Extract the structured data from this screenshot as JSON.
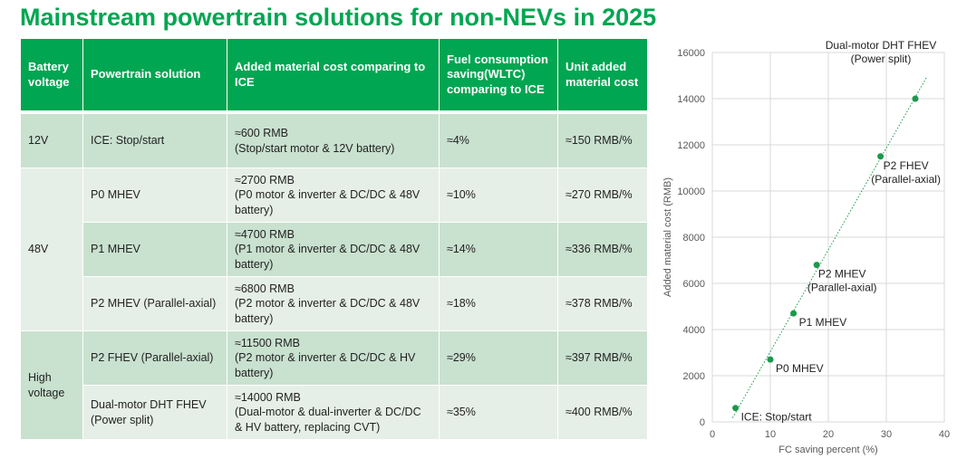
{
  "title": "Mainstream powertrain solutions for non-NEVs in 2025",
  "table": {
    "headers": [
      "Battery voltage",
      "Powertrain solution",
      "Added material cost comparing to ICE",
      "Fuel consumption saving(WLTC) comparing to ICE",
      "Unit added material cost"
    ],
    "groups": [
      "12V",
      "48V",
      "High voltage"
    ],
    "rows": [
      {
        "solution": "ICE: Stop/start",
        "cost": "≈600 RMB",
        "cost_detail": "(Stop/start motor & 12V battery)",
        "saving": "≈4%",
        "unit": "≈150 RMB/%"
      },
      {
        "solution": "P0 MHEV",
        "cost": "≈2700 RMB",
        "cost_detail": "(P0 motor & inverter & DC/DC & 48V battery)",
        "saving": "≈10%",
        "unit": "≈270 RMB/%"
      },
      {
        "solution": "P1 MHEV",
        "cost": "≈4700 RMB",
        "cost_detail": "(P1 motor & inverter & DC/DC & 48V battery)",
        "saving": "≈14%",
        "unit": "≈336 RMB/%"
      },
      {
        "solution": "P2 MHEV (Parallel-axial)",
        "cost": "≈6800 RMB",
        "cost_detail": "(P2 motor & inverter & DC/DC & 48V battery)",
        "saving": "≈18%",
        "unit": "≈378 RMB/%"
      },
      {
        "solution": "P2 FHEV (Parallel-axial)",
        "cost": "≈11500 RMB",
        "cost_detail": "(P2 motor & inverter & DC/DC & HV battery)",
        "saving": "≈29%",
        "unit": "≈397 RMB/%"
      },
      {
        "solution": "Dual-motor DHT FHEV (Power split)",
        "cost": "≈14000 RMB",
        "cost_detail": "(Dual-motor & dual-inverter & DC/DC & HV battery, replacing CVT)",
        "saving": "≈35%",
        "unit": "≈400 RMB/%"
      }
    ]
  },
  "chart_data": {
    "type": "scatter",
    "xlabel": "FC saving percent (%)",
    "ylabel": "Added material cost (RMB)",
    "xlim": [
      0,
      40
    ],
    "ylim": [
      0,
      16000
    ],
    "xticks": [
      0,
      10,
      20,
      30,
      40
    ],
    "yticks": [
      0,
      2000,
      4000,
      6000,
      8000,
      10000,
      12000,
      14000,
      16000
    ],
    "grid": true,
    "trendline": "linear, dotted",
    "color": "#1a9a4a",
    "points": [
      {
        "x": 4,
        "y": 600,
        "label": [
          "ICE: Stop/start"
        ]
      },
      {
        "x": 10,
        "y": 2700,
        "label": [
          "P0 MHEV"
        ]
      },
      {
        "x": 14,
        "y": 4700,
        "label": [
          "P1 MHEV"
        ]
      },
      {
        "x": 18,
        "y": 6800,
        "label": [
          "P2 MHEV",
          "(Parallel-axial)"
        ]
      },
      {
        "x": 29,
        "y": 11500,
        "label": [
          "P2 FHEV",
          "(Parallel-axial)"
        ]
      },
      {
        "x": 35,
        "y": 14000,
        "label": [
          "Dual-motor DHT FHEV",
          "(Power split)"
        ]
      }
    ]
  }
}
